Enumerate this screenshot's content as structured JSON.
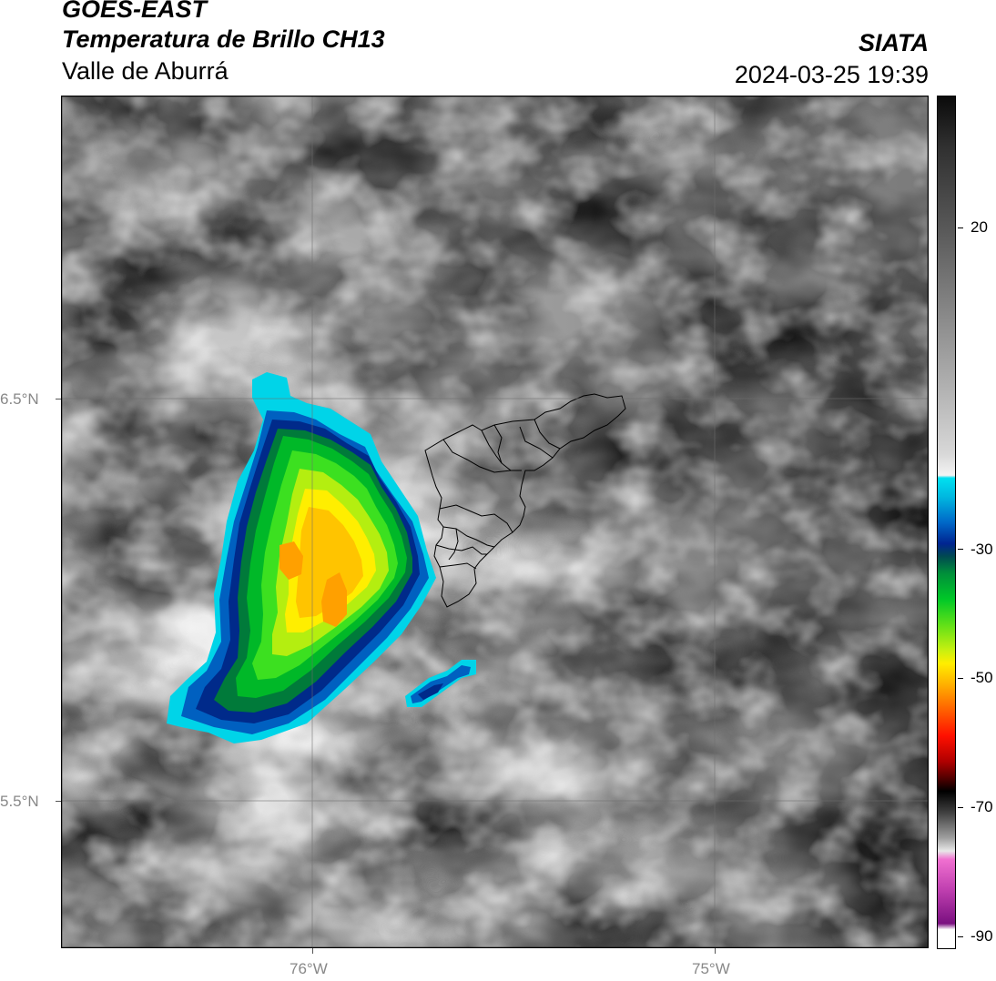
{
  "header": {
    "satellite": "GOES-EAST",
    "product": "Temperatura de Brillo CH13",
    "region": "Valle de Aburrá",
    "organization": "SIATA",
    "datetime": "2024-03-25 19:39"
  },
  "map": {
    "x_axis_labels": [
      "76°W",
      "75°W"
    ],
    "y_axis_labels": [
      "6.5°N",
      "5.5°N"
    ],
    "background_style": "grayscale brightness temperature field",
    "storm_colors": [
      "#00d4e8",
      "#0060c0",
      "#002a8a",
      "#007a3a",
      "#00b828",
      "#3ce020",
      "#b4ee10",
      "#ffee00",
      "#ffc400",
      "#ffa000"
    ]
  },
  "colorbar": {
    "tick_labels": [
      "20",
      "-30",
      "-50",
      "-70",
      "-90"
    ]
  }
}
